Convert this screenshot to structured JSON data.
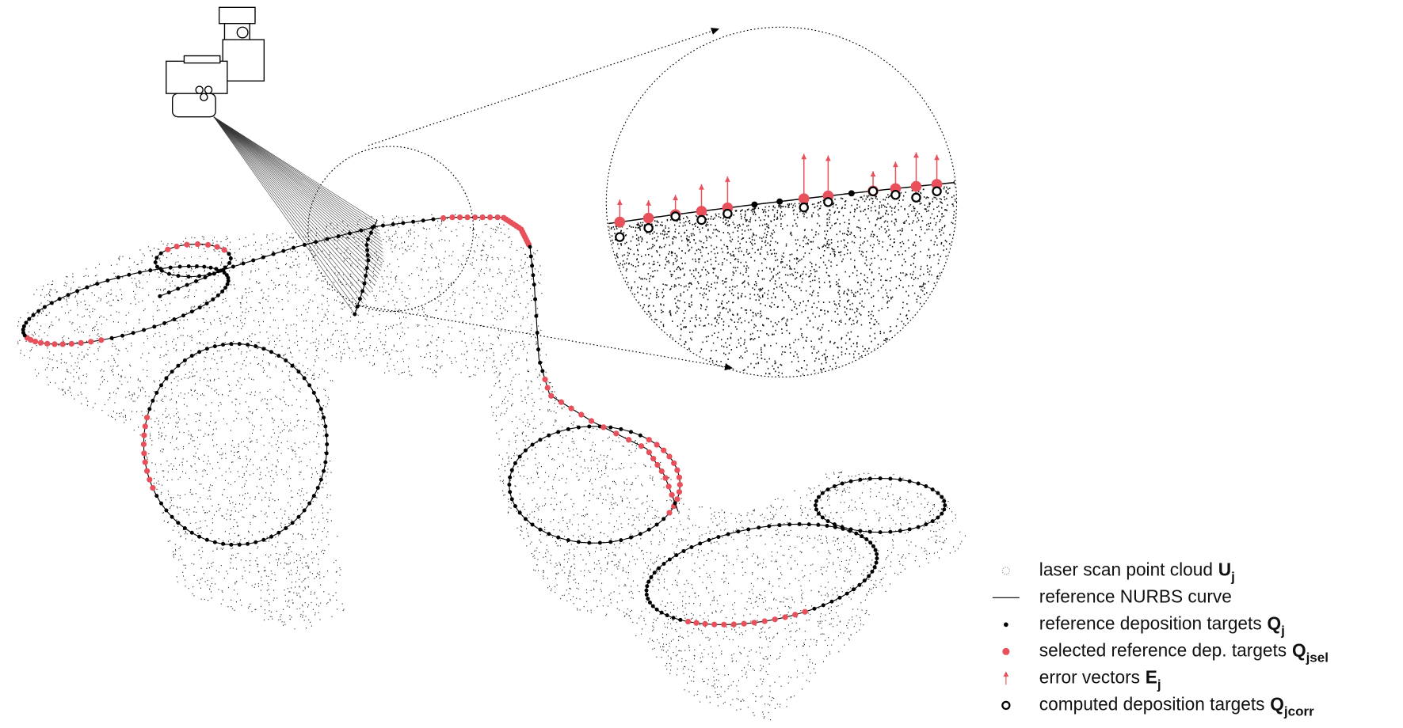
{
  "legend": {
    "items": [
      {
        "label": "laser scan point cloud",
        "symbol": "U",
        "subscript": "j"
      },
      {
        "label": "reference NURBS curve"
      },
      {
        "label": "reference deposition targets",
        "symbol": "Q",
        "subscript": "j"
      },
      {
        "label": "selected reference dep. targets",
        "symbol": "Q",
        "subscript": "jsel"
      },
      {
        "label": "error vectors",
        "symbol": "E",
        "subscript": "j"
      },
      {
        "label": "computed deposition targets",
        "symbol": "Q",
        "subscript": "jcorr"
      }
    ]
  }
}
